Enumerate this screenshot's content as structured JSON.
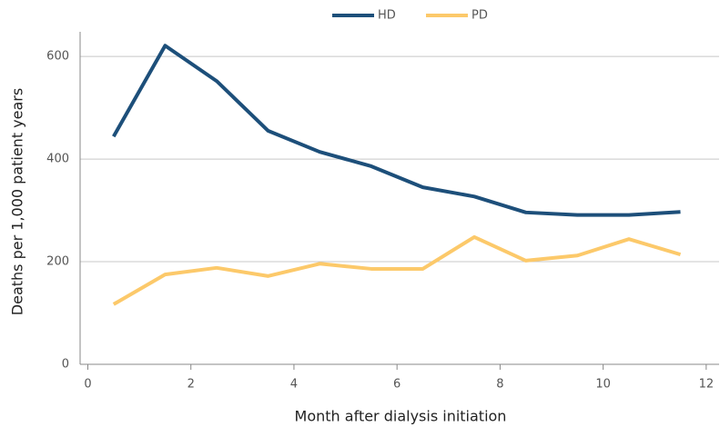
{
  "chart_data": {
    "type": "line",
    "x": [
      0.5,
      1.5,
      2.5,
      3.5,
      4.5,
      5.5,
      6.5,
      7.5,
      8.5,
      9.5,
      10.5,
      11.5
    ],
    "series": [
      {
        "name": "HD",
        "color": "#1d4f7a",
        "values": [
          444,
          621,
          552,
          455,
          414,
          386,
          345,
          327,
          296,
          291,
          291,
          297
        ]
      },
      {
        "name": "PD",
        "color": "#fcc96a",
        "values": [
          117,
          175,
          188,
          172,
          196,
          186,
          186,
          248,
          202,
          212,
          244,
          214
        ]
      }
    ],
    "xlabel": "Month after dialysis initiation",
    "ylabel": "Deaths per 1,000 patient years",
    "xlim": [
      -0.15,
      12.25
    ],
    "xticks": [
      0,
      2,
      4,
      6,
      8,
      10,
      12
    ],
    "ylim": [
      0,
      648
    ],
    "yticks": [
      0,
      200,
      400,
      600
    ],
    "grid": true,
    "legend": "top"
  }
}
